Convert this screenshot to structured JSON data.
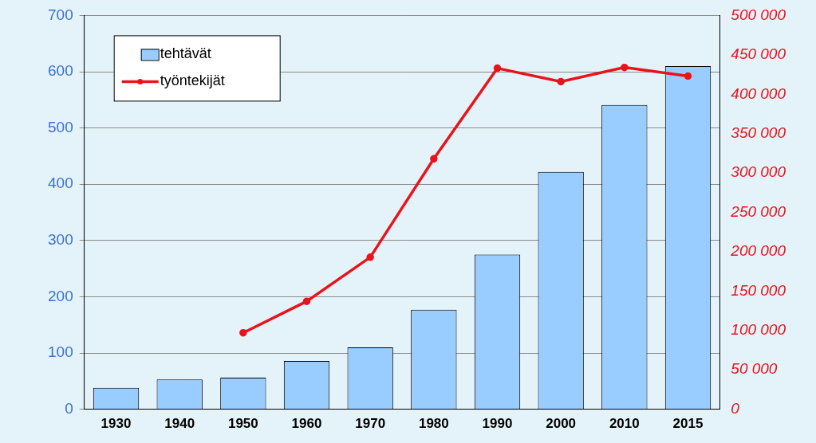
{
  "chart_data": {
    "type": "bar",
    "categories": [
      "1930",
      "1940",
      "1950",
      "1960",
      "1970",
      "1980",
      "1990",
      "2000",
      "2010",
      "2015"
    ],
    "series": [
      {
        "name": "tehtävät",
        "type": "bar",
        "color": "#99ccff",
        "values": [
          38,
          53,
          56,
          86,
          110,
          177,
          275,
          422,
          541,
          610
        ]
      },
      {
        "name": "työntekijät",
        "type": "line",
        "color": "#e8141c",
        "marker": "circle",
        "axis": "y2",
        "values": [
          null,
          null,
          97000,
          137000,
          193000,
          318000,
          433000,
          416000,
          434000,
          423000
        ]
      }
    ],
    "ylim": [
      0,
      700
    ],
    "yticks": [
      0,
      100,
      200,
      300,
      400,
      500,
      600,
      700
    ],
    "y2lim": [
      0,
      500000
    ],
    "y2ticks": [
      0,
      {
        "value": 50000,
        "label": "50 000"
      },
      {
        "value": 100000,
        "label": "100 000"
      },
      {
        "value": 150000,
        "label": "150 000"
      },
      {
        "value": 200000,
        "label": "200 000"
      },
      {
        "value": 250000,
        "label": "250 000"
      },
      {
        "value": 300000,
        "label": "300 000"
      },
      {
        "value": 350000,
        "label": "350 000"
      },
      {
        "value": 400000,
        "label": "400 000"
      },
      {
        "value": 450000,
        "label": "450 000"
      },
      {
        "value": 500000,
        "label": "500 000"
      }
    ],
    "grid": true,
    "legend": "upper left"
  }
}
